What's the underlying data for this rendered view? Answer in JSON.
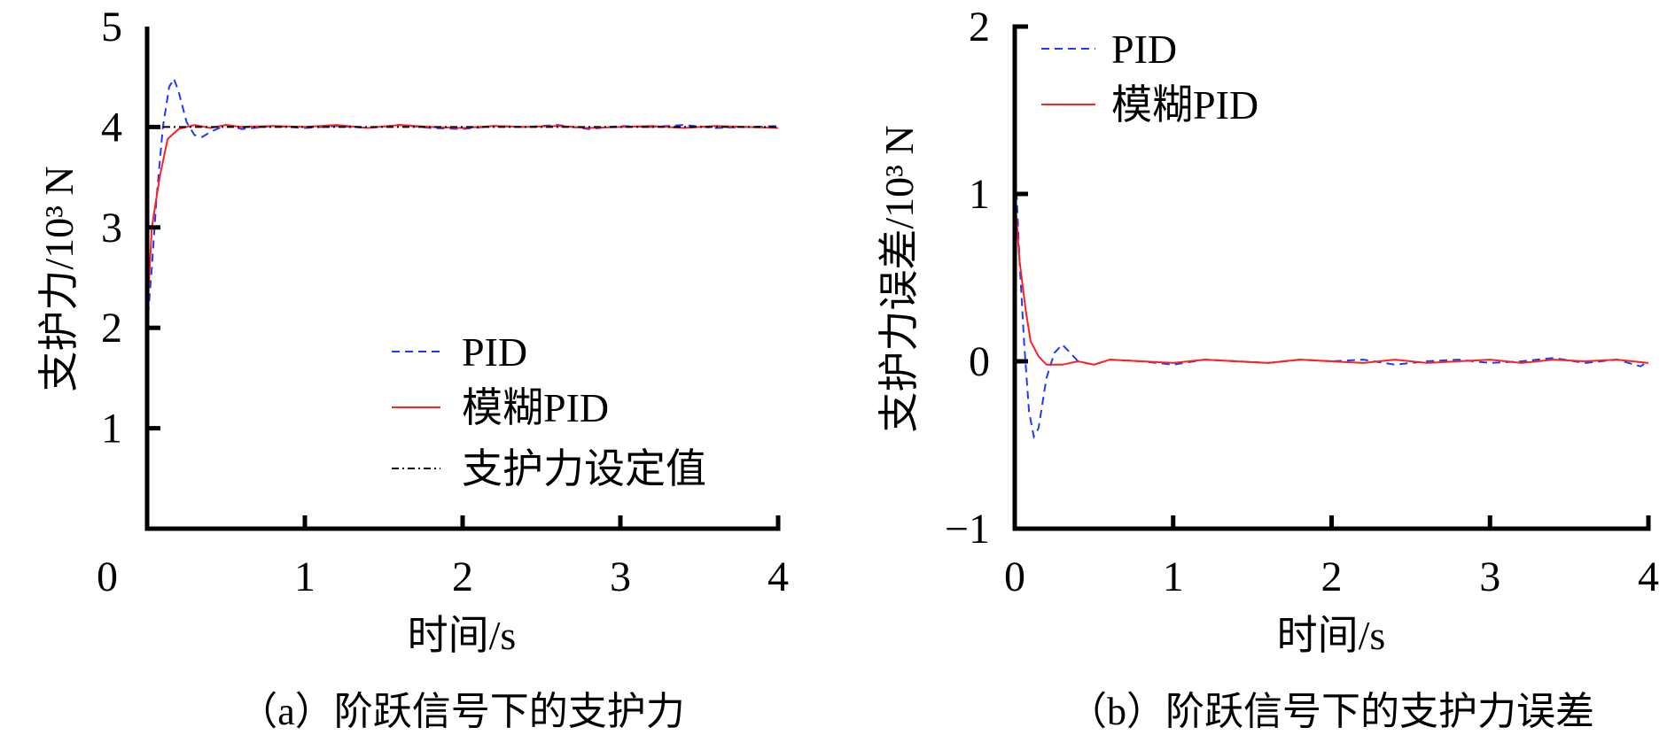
{
  "chart_data": [
    {
      "type": "line",
      "caption": "（a）阶跃信号下的支护力",
      "xlabel": "时间/s",
      "ylabel": "支护力/10³ N",
      "xlim": [
        0,
        4
      ],
      "ylim": [
        0,
        5
      ],
      "xticks": [
        "0",
        "1",
        "2",
        "3",
        "4"
      ],
      "yticks": [
        "1",
        "2",
        "3",
        "4",
        "5"
      ],
      "legend_position": "lower-right",
      "series": [
        {
          "name": "PID",
          "color": "#1a3cff",
          "style": "dashed",
          "points": [
            [
              0,
              2.0
            ],
            [
              0.03,
              2.6
            ],
            [
              0.06,
              3.3
            ],
            [
              0.1,
              4.0
            ],
            [
              0.14,
              4.4
            ],
            [
              0.17,
              4.48
            ],
            [
              0.2,
              4.35
            ],
            [
              0.25,
              4.05
            ],
            [
              0.3,
              3.92
            ],
            [
              0.35,
              3.9
            ],
            [
              0.4,
              3.95
            ],
            [
              0.5,
              4.02
            ],
            [
              0.6,
              3.98
            ],
            [
              0.8,
              4.01
            ],
            [
              1.0,
              3.99
            ],
            [
              1.2,
              4.01
            ],
            [
              1.4,
              3.99
            ],
            [
              1.6,
              4.02
            ],
            [
              1.8,
              3.99
            ],
            [
              2.0,
              3.98
            ],
            [
              2.2,
              4.01
            ],
            [
              2.4,
              4.0
            ],
            [
              2.6,
              4.02
            ],
            [
              2.8,
              3.98
            ],
            [
              3.0,
              4.01
            ],
            [
              3.2,
              4.0
            ],
            [
              3.4,
              4.02
            ],
            [
              3.6,
              3.99
            ],
            [
              3.8,
              4.0
            ],
            [
              4.0,
              4.01
            ]
          ]
        },
        {
          "name": "模糊PID",
          "color": "#ff2020",
          "style": "solid",
          "points": [
            [
              0,
              2.1
            ],
            [
              0.03,
              3.0
            ],
            [
              0.08,
              3.5
            ],
            [
              0.13,
              3.88
            ],
            [
              0.2,
              3.98
            ],
            [
              0.3,
              4.02
            ],
            [
              0.4,
              3.99
            ],
            [
              0.5,
              4.02
            ],
            [
              0.6,
              4.0
            ],
            [
              0.8,
              4.01
            ],
            [
              1.0,
              4.0
            ],
            [
              1.2,
              4.02
            ],
            [
              1.4,
              3.99
            ],
            [
              1.6,
              4.02
            ],
            [
              1.8,
              4.0
            ],
            [
              2.0,
              3.99
            ],
            [
              2.2,
              4.01
            ],
            [
              2.4,
              4.0
            ],
            [
              2.6,
              4.01
            ],
            [
              2.8,
              3.99
            ],
            [
              3.0,
              4.0
            ],
            [
              3.2,
              4.01
            ],
            [
              3.4,
              3.99
            ],
            [
              3.6,
              4.01
            ],
            [
              3.8,
              4.0
            ],
            [
              4.0,
              3.99
            ]
          ]
        },
        {
          "name": "支护力设定值",
          "color": "#000000",
          "style": "dashdot",
          "points": [
            [
              0,
              4
            ],
            [
              4,
              4
            ]
          ]
        }
      ]
    },
    {
      "type": "line",
      "caption": "（b）阶跃信号下的支护力误差",
      "xlabel": "时间/s",
      "ylabel": "支护力误差/10³ N",
      "xlim": [
        0,
        4
      ],
      "ylim": [
        -1,
        2
      ],
      "xticks": [
        "0",
        "1",
        "2",
        "3",
        "4"
      ],
      "yticks": [
        "−1",
        "0",
        "1",
        "2"
      ],
      "legend_position": "top-left",
      "series": [
        {
          "name": "PID",
          "color": "#1a3cff",
          "style": "dashed",
          "points": [
            [
              0,
              1.25
            ],
            [
              0.03,
              0.6
            ],
            [
              0.06,
              0.1
            ],
            [
              0.09,
              -0.3
            ],
            [
              0.12,
              -0.45
            ],
            [
              0.15,
              -0.4
            ],
            [
              0.2,
              -0.1
            ],
            [
              0.25,
              0.05
            ],
            [
              0.3,
              0.1
            ],
            [
              0.35,
              0.05
            ],
            [
              0.4,
              0.0
            ],
            [
              0.5,
              -0.02
            ],
            [
              0.6,
              0.01
            ],
            [
              0.8,
              0.0
            ],
            [
              1.0,
              -0.02
            ],
            [
              1.2,
              0.01
            ],
            [
              1.4,
              0.0
            ],
            [
              1.6,
              -0.01
            ],
            [
              1.8,
              0.01
            ],
            [
              2.0,
              0.0
            ],
            [
              2.2,
              0.01
            ],
            [
              2.4,
              -0.02
            ],
            [
              2.6,
              0.0
            ],
            [
              2.8,
              0.01
            ],
            [
              3.0,
              -0.01
            ],
            [
              3.2,
              0.0
            ],
            [
              3.4,
              0.02
            ],
            [
              3.6,
              -0.01
            ],
            [
              3.8,
              0.01
            ],
            [
              3.95,
              -0.03
            ],
            [
              4.0,
              0.0
            ]
          ]
        },
        {
          "name": "模糊PID",
          "color": "#ff2020",
          "style": "solid",
          "points": [
            [
              0,
              1.0
            ],
            [
              0.03,
              0.6
            ],
            [
              0.07,
              0.3
            ],
            [
              0.1,
              0.12
            ],
            [
              0.15,
              0.03
            ],
            [
              0.2,
              -0.02
            ],
            [
              0.3,
              -0.02
            ],
            [
              0.4,
              0.0
            ],
            [
              0.5,
              -0.02
            ],
            [
              0.6,
              0.01
            ],
            [
              0.8,
              0.0
            ],
            [
              1.0,
              -0.01
            ],
            [
              1.2,
              0.01
            ],
            [
              1.4,
              0.0
            ],
            [
              1.6,
              -0.01
            ],
            [
              1.8,
              0.01
            ],
            [
              2.0,
              0.0
            ],
            [
              2.2,
              -0.01
            ],
            [
              2.4,
              0.01
            ],
            [
              2.6,
              -0.01
            ],
            [
              2.8,
              0.0
            ],
            [
              3.0,
              0.01
            ],
            [
              3.2,
              -0.01
            ],
            [
              3.4,
              0.01
            ],
            [
              3.6,
              0.0
            ],
            [
              3.8,
              0.01
            ],
            [
              4.0,
              -0.01
            ]
          ]
        }
      ]
    }
  ]
}
